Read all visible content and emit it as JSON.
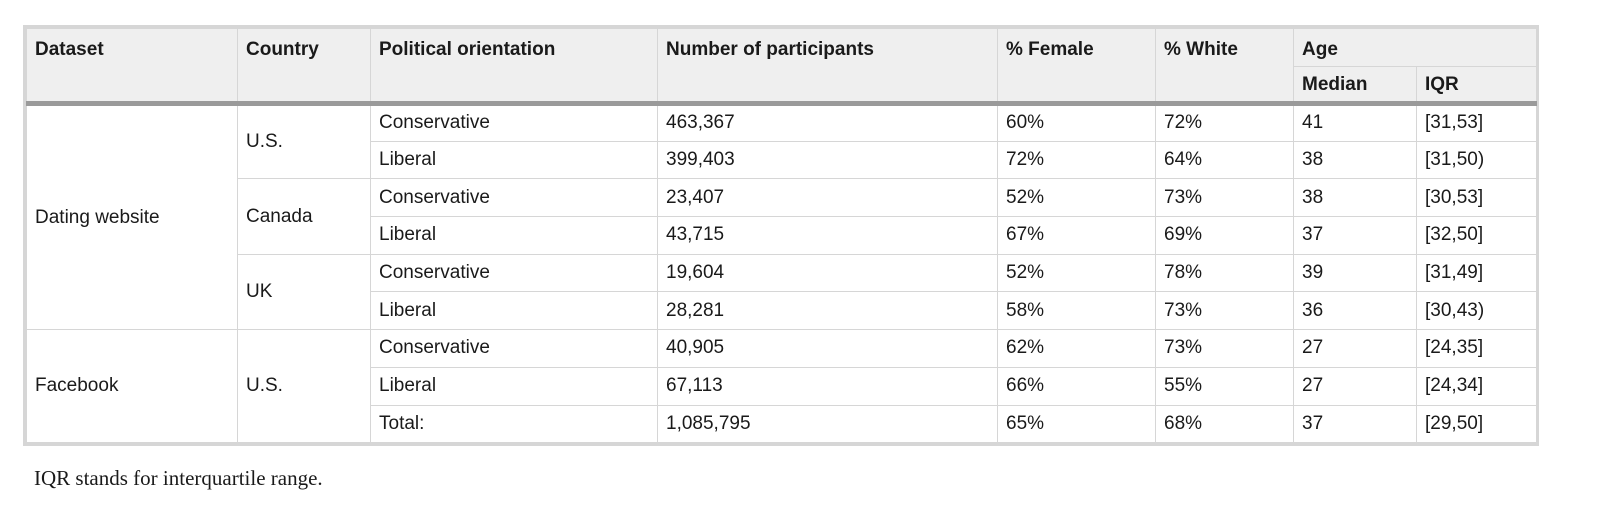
{
  "table": {
    "headers": {
      "dataset": "Dataset",
      "country": "Country",
      "political_orientation": "Political orientation",
      "participants": "Number of participants",
      "female": "% Female",
      "white": "% White",
      "age": "Age",
      "median": "Median",
      "iqr": "IQR"
    },
    "groups": {
      "dating": "Dating website",
      "facebook": "Facebook",
      "us": "U.S.",
      "canada": "Canada",
      "uk": "UK",
      "facebook_us": "U.S."
    },
    "rows": [
      {
        "orientation": "Conservative",
        "participants": "463,367",
        "female": "60%",
        "white": "72%",
        "median": "41",
        "iqr": "[31,53]"
      },
      {
        "orientation": "Liberal",
        "participants": "399,403",
        "female": "72%",
        "white": "64%",
        "median": "38",
        "iqr": "[31,50)"
      },
      {
        "orientation": "Conservative",
        "participants": "23,407",
        "female": "52%",
        "white": "73%",
        "median": "38",
        "iqr": "[30,53]"
      },
      {
        "orientation": "Liberal",
        "participants": "43,715",
        "female": "67%",
        "white": "69%",
        "median": "37",
        "iqr": "[32,50]"
      },
      {
        "orientation": "Conservative",
        "participants": "19,604",
        "female": "52%",
        "white": "78%",
        "median": "39",
        "iqr": "[31,49]"
      },
      {
        "orientation": "Liberal",
        "participants": "28,281",
        "female": "58%",
        "white": "73%",
        "median": "36",
        "iqr": "[30,43)"
      },
      {
        "orientation": "Conservative",
        "participants": "40,905",
        "female": "62%",
        "white": "73%",
        "median": "27",
        "iqr": "[24,35]"
      },
      {
        "orientation": "Liberal",
        "participants": "67,113",
        "female": "66%",
        "white": "55%",
        "median": "27",
        "iqr": "[24,34]"
      },
      {
        "orientation": "Total:",
        "participants": "1,085,795",
        "female": "65%",
        "white": "68%",
        "median": "37",
        "iqr": "[29,50]"
      }
    ]
  },
  "footnote": "IQR stands for interquartile range."
}
